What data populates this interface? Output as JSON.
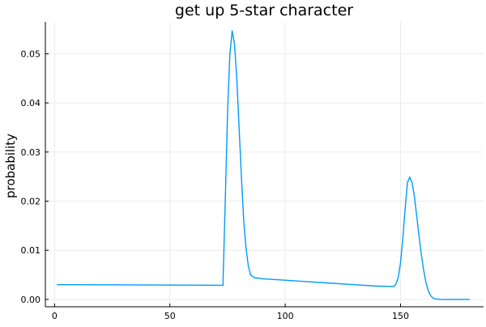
{
  "chart_data": {
    "type": "line",
    "title": "get up 5-star character",
    "xlabel": "",
    "ylabel": "probability",
    "xlim": [
      -4,
      186
    ],
    "ylim": [
      -0.0015,
      0.0565
    ],
    "x_ticks": [
      0,
      50,
      100,
      150
    ],
    "x_tick_labels": [
      "0",
      "50",
      "100",
      "150"
    ],
    "y_ticks": [
      0.0,
      0.01,
      0.02,
      0.03,
      0.04,
      0.05
    ],
    "y_tick_labels": [
      "0.00",
      "0.01",
      "0.02",
      "0.03",
      "0.04",
      "0.05"
    ],
    "grid": true,
    "legend": "none",
    "colors": {
      "series": "#009AFA",
      "grid": "#EBEBEB",
      "axis": "#000000",
      "text": "#000000"
    },
    "series": [
      {
        "x": [
          1,
          10,
          20,
          30,
          40,
          50,
          60,
          70,
          73,
          74,
          75,
          76,
          77,
          78,
          79,
          80,
          81,
          82,
          83,
          84,
          85,
          86,
          87,
          88,
          90,
          100,
          110,
          120,
          130,
          140,
          145,
          147,
          148,
          149,
          150,
          151,
          152,
          153,
          154,
          155,
          156,
          157,
          158,
          159,
          160,
          161,
          162,
          163,
          164,
          165,
          166,
          167,
          168,
          170,
          175,
          180
        ],
        "y": [
          0.003,
          0.003,
          0.00298,
          0.00296,
          0.00294,
          0.00292,
          0.0029,
          0.00288,
          0.00287,
          0.02,
          0.038,
          0.05,
          0.0547,
          0.052,
          0.045,
          0.035,
          0.025,
          0.016,
          0.0105,
          0.0068,
          0.005,
          0.0046,
          0.0044,
          0.00435,
          0.0042,
          0.0039,
          0.0036,
          0.0033,
          0.003,
          0.0027,
          0.00265,
          0.0026,
          0.0031,
          0.0045,
          0.0075,
          0.0125,
          0.0185,
          0.0238,
          0.0249,
          0.0238,
          0.021,
          0.017,
          0.013,
          0.0092,
          0.006,
          0.0035,
          0.0018,
          0.0008,
          0.0003,
          0.0001,
          5e-05,
          2e-05,
          0.0,
          0.0,
          0.0,
          0.0
        ]
      }
    ]
  }
}
